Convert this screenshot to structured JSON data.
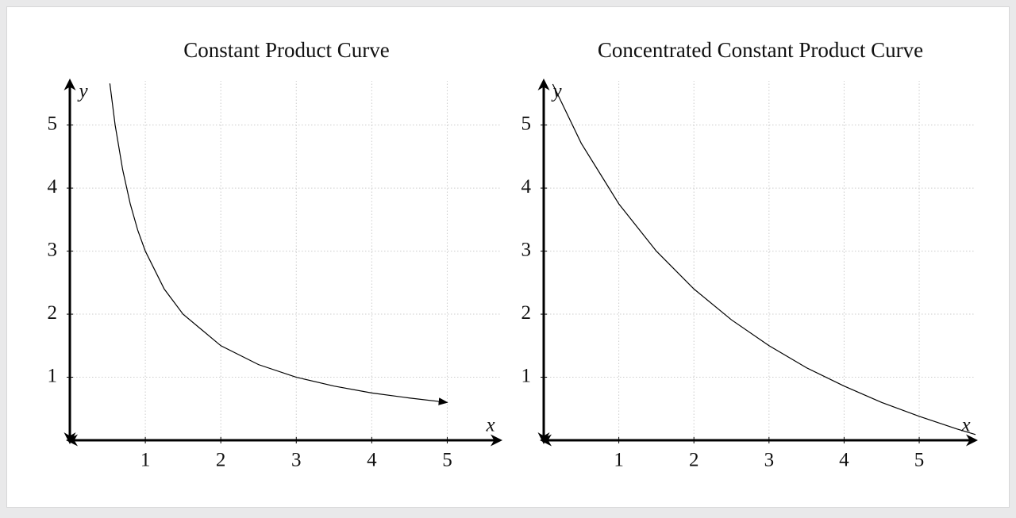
{
  "chart_data": [
    {
      "type": "line",
      "title": "Constant Product Curve",
      "xlabel": "x",
      "ylabel": "y",
      "x": [
        0.53,
        0.6,
        0.7,
        0.8,
        0.9,
        1,
        1.25,
        1.5,
        2,
        2.5,
        3,
        3.5,
        4,
        4.5,
        5
      ],
      "values": [
        5.66,
        5,
        4.29,
        3.75,
        3.33,
        3,
        2.4,
        2,
        1.5,
        1.2,
        1,
        0.86,
        0.75,
        0.67,
        0.6
      ],
      "color": "#000000",
      "end_arrow": true,
      "xlim": [
        0,
        5.7
      ],
      "ylim": [
        0,
        5.7
      ],
      "xticks": [
        1,
        2,
        3,
        4,
        5
      ],
      "yticks": [
        1,
        2,
        3,
        4,
        5
      ],
      "grid": true
    },
    {
      "type": "line",
      "title": "Concentrated Constant Product Curve",
      "xlabel": "x",
      "ylabel": "y",
      "x": [
        0.12,
        0.5,
        1,
        1.5,
        2,
        2.5,
        3,
        3.5,
        4,
        4.5,
        5,
        5.5,
        5.75
      ],
      "values": [
        5.65,
        4.71,
        3.75,
        3,
        2.4,
        1.91,
        1.5,
        1.15,
        0.86,
        0.6,
        0.38,
        0.18,
        0.09
      ],
      "color": "#000000",
      "end_arrow": false,
      "xlim": [
        0,
        5.75
      ],
      "ylim": [
        0,
        5.7
      ],
      "xticks": [
        1,
        2,
        3,
        4,
        5
      ],
      "yticks": [
        1,
        2,
        3,
        4,
        5
      ],
      "grid": true
    }
  ]
}
